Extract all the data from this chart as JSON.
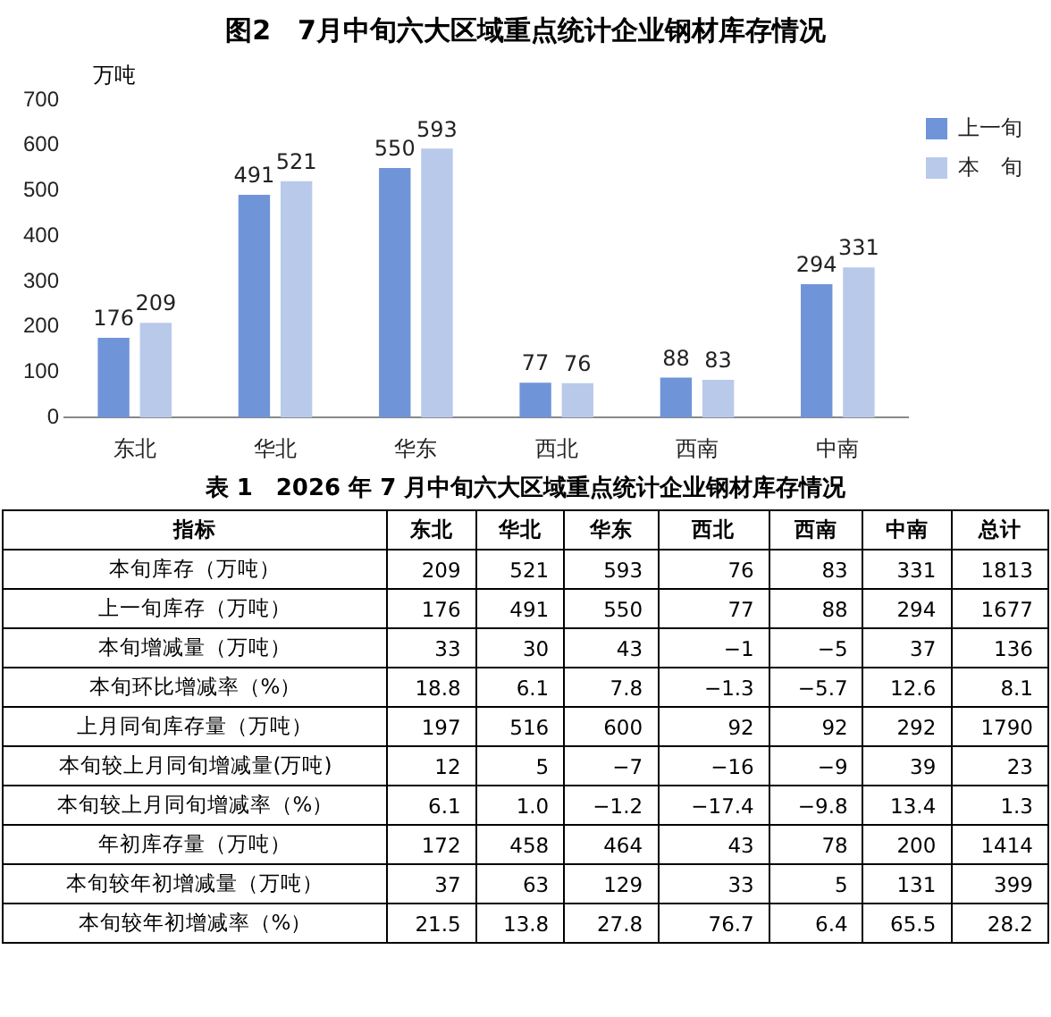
{
  "chart_data": [
    {
      "type": "bar",
      "title": "图2　7月中旬六大区域重点统计企业钢材库存情况",
      "ylabel": "万吨",
      "categories": [
        "东北",
        "华北",
        "华东",
        "西北",
        "西南",
        "中南"
      ],
      "series": [
        {
          "name": "上一旬",
          "color": "#7094d8",
          "values": [
            176,
            491,
            550,
            77,
            88,
            294
          ]
        },
        {
          "name": "本　旬",
          "color": "#b9c9ea",
          "values": [
            209,
            521,
            593,
            76,
            83,
            331
          ]
        }
      ],
      "ylim": [
        0,
        700
      ],
      "yticks": [
        0,
        100,
        200,
        300,
        400,
        500,
        600,
        700
      ],
      "legend": "top right",
      "data_labels": true
    },
    {
      "type": "other",
      "title": "表 1　2026 年 7 月中旬六大区域重点统计企业钢材库存情况",
      "ylabel": "指标",
      "categories": [
        "东北",
        "华北",
        "华东",
        "西北",
        "西南",
        "中南",
        "总计"
      ],
      "y_categories": [
        "本旬库存（万吨）",
        "上一旬库存（万吨）",
        "本旬增减量（万吨）",
        "本旬环比增减率（%）",
        "上月同旬库存量（万吨）",
        "本旬较上月同旬增减量(万吨)",
        "本旬较上月同旬增减率（%）",
        "年初库存量（万吨）",
        "本旬较年初增减量（万吨）",
        "本旬较年初增减率（%）"
      ],
      "cell_labels": [
        [
          "209",
          "521",
          "593",
          "76",
          "83",
          "331",
          "1813"
        ],
        [
          "176",
          "491",
          "550",
          "77",
          "88",
          "294",
          "1677"
        ],
        [
          "33",
          "30",
          "43",
          "−1",
          "−5",
          "37",
          "136"
        ],
        [
          "18.8",
          "6.1",
          "7.8",
          "−1.3",
          "−5.7",
          "12.6",
          "8.1"
        ],
        [
          "197",
          "516",
          "600",
          "92",
          "92",
          "292",
          "1790"
        ],
        [
          "12",
          "5",
          "−7",
          "−16",
          "−9",
          "39",
          "23"
        ],
        [
          "6.1",
          "1.0",
          "−1.2",
          "−17.4",
          "−9.8",
          "13.4",
          "1.3"
        ],
        [
          "172",
          "458",
          "464",
          "43",
          "78",
          "200",
          "1414"
        ],
        [
          "37",
          "63",
          "129",
          "33",
          "5",
          "131",
          "399"
        ],
        [
          "21.5",
          "13.8",
          "27.8",
          "76.7",
          "6.4",
          "65.5",
          "28.2"
        ]
      ]
    }
  ]
}
